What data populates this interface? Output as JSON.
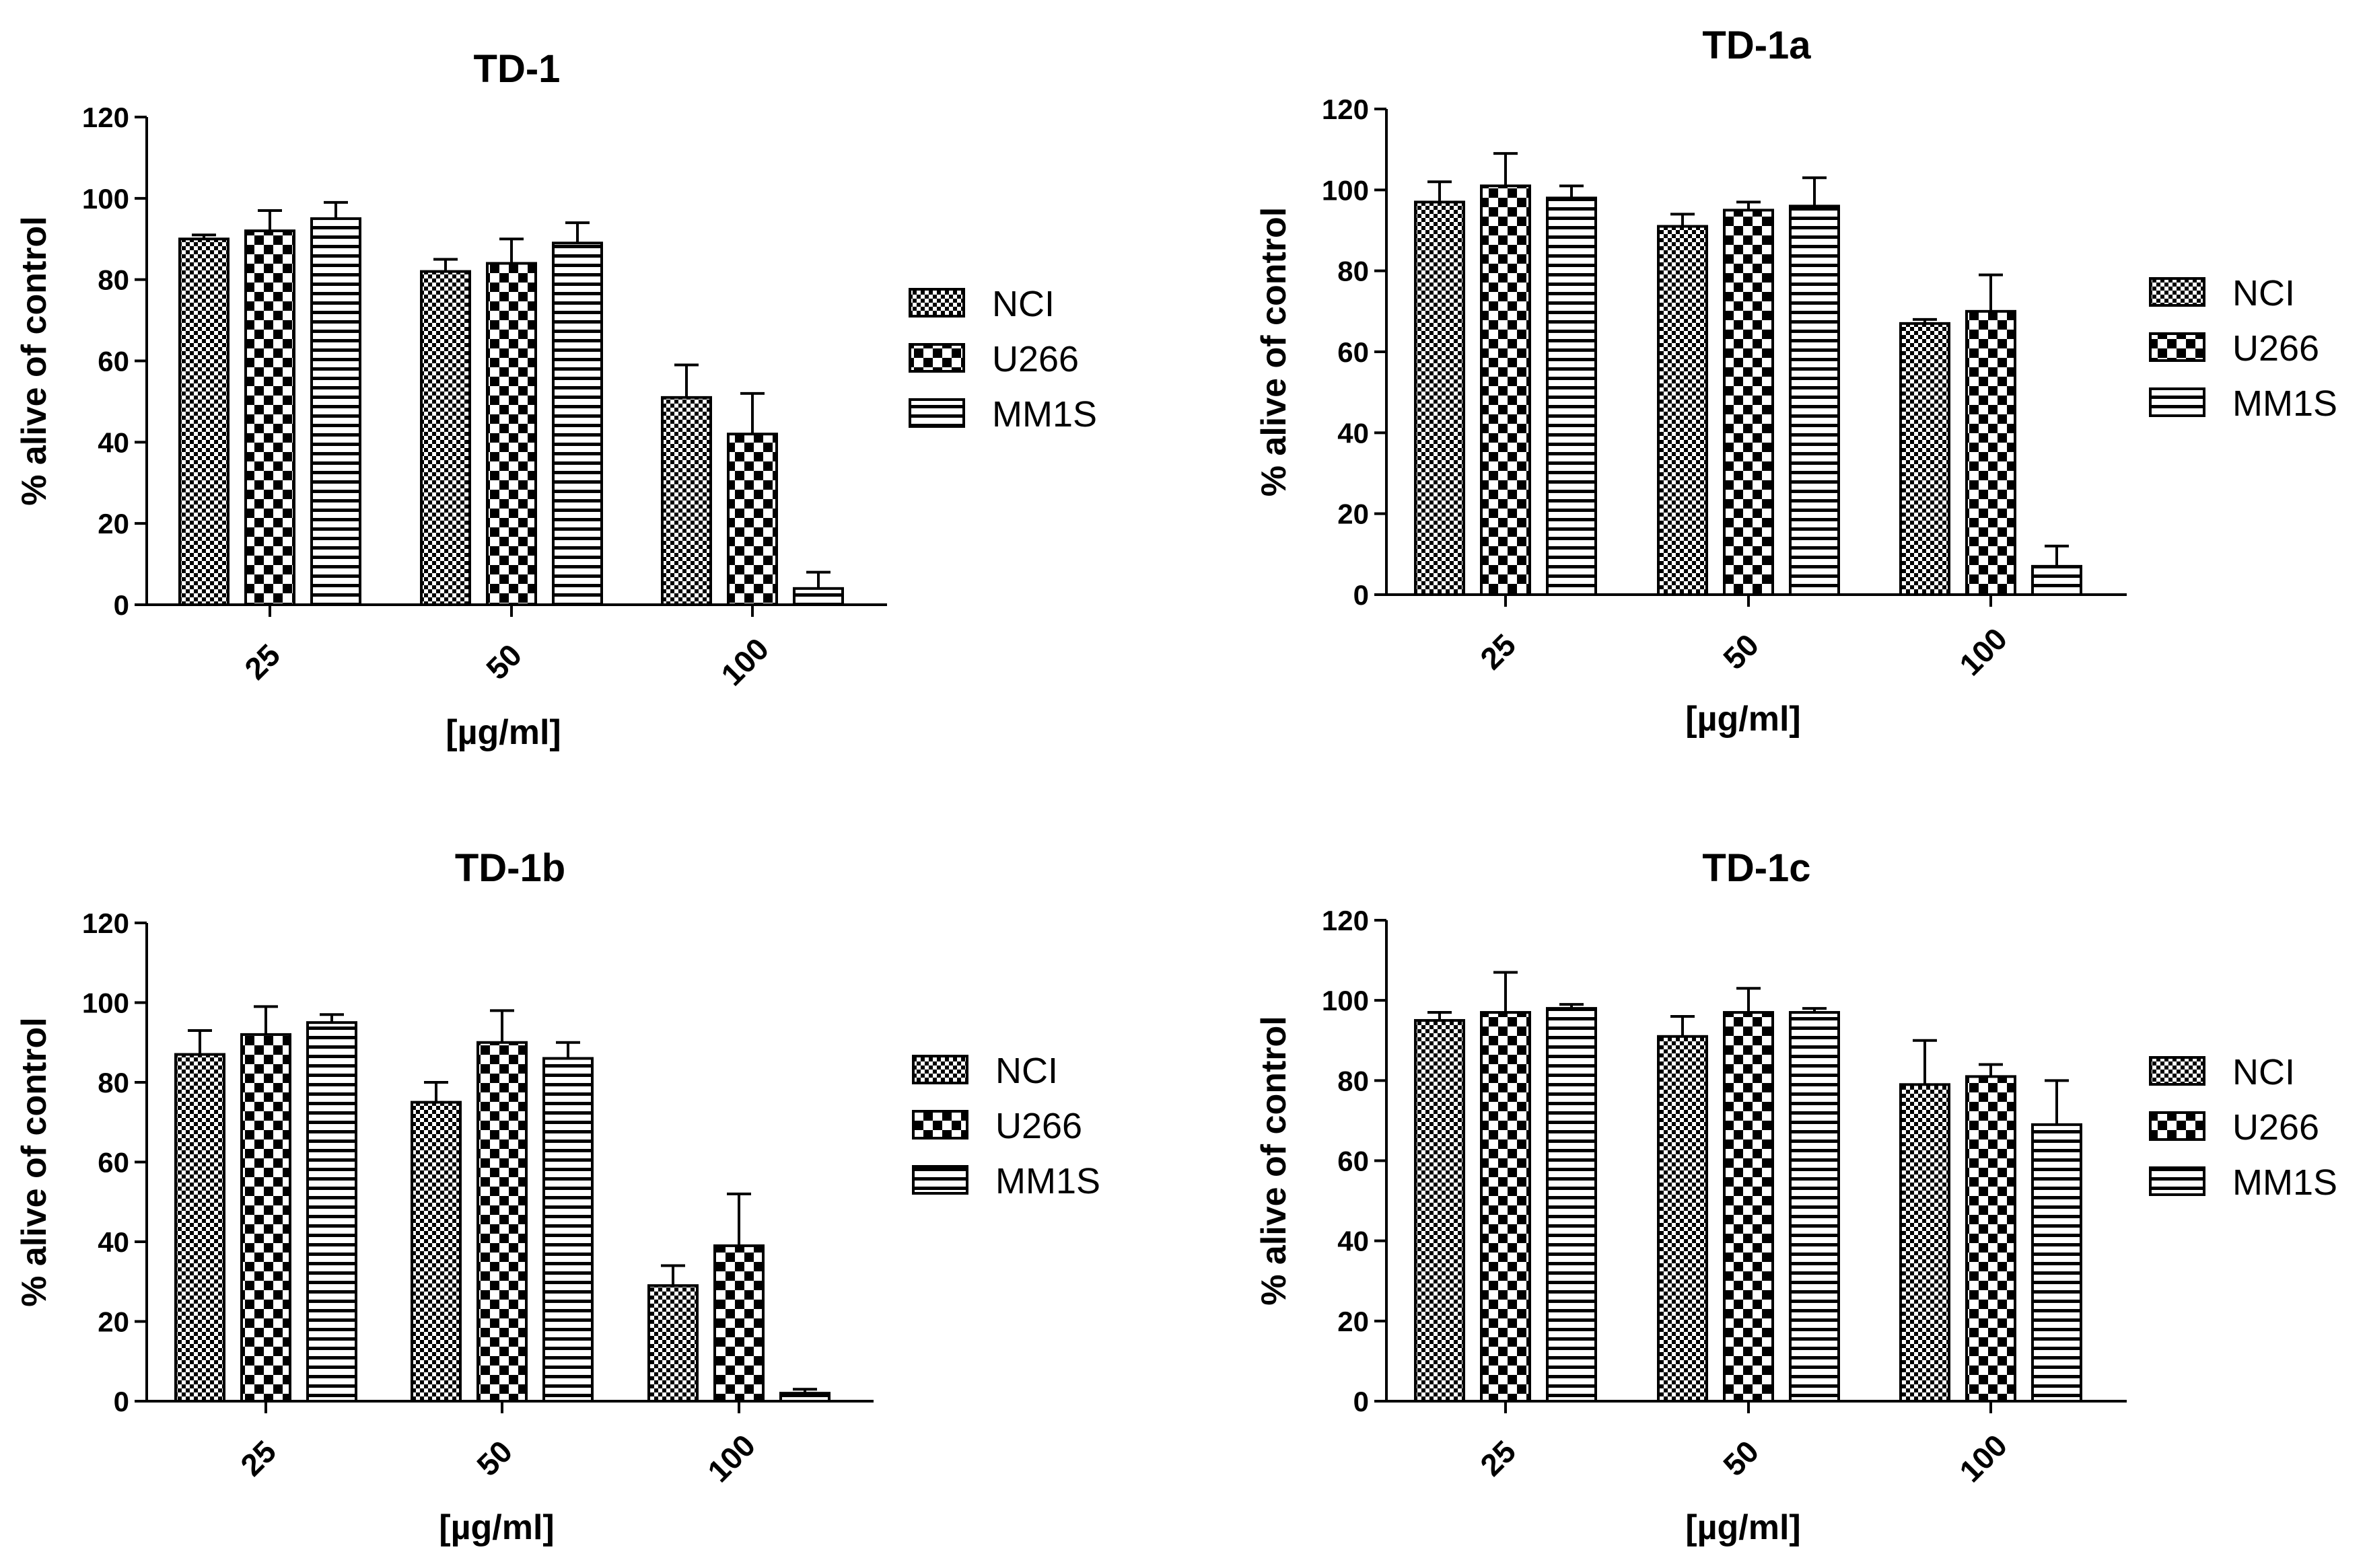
{
  "figure": {
    "colors": {
      "axis": "#000000",
      "bar_fill": "#ffffff"
    }
  },
  "chart_data": [
    {
      "type": "bar",
      "title": "TD-1",
      "xlabel": "[µg/ml]",
      "ylabel": "% alive of control",
      "categories": [
        "25",
        "50",
        "100"
      ],
      "ylim": [
        0,
        120
      ],
      "yticks": [
        "0",
        "20",
        "40",
        "60",
        "80",
        "100",
        "120"
      ],
      "legend": "right",
      "series": [
        {
          "name": "NCI",
          "pattern": "fine-check",
          "values": [
            90,
            82,
            51
          ],
          "errors": [
            1,
            3,
            8
          ]
        },
        {
          "name": "U266",
          "pattern": "coarse-check",
          "values": [
            92,
            84,
            42
          ],
          "errors": [
            5,
            6,
            10
          ]
        },
        {
          "name": "MM1S",
          "pattern": "horizontal-lines",
          "values": [
            95,
            89,
            4
          ],
          "errors": [
            4,
            5,
            4
          ]
        }
      ]
    },
    {
      "type": "bar",
      "title": "TD-1a",
      "xlabel": "[µg/ml]",
      "ylabel": "% alive of control",
      "categories": [
        "25",
        "50",
        "100"
      ],
      "ylim": [
        0,
        120
      ],
      "yticks": [
        "0",
        "20",
        "40",
        "60",
        "80",
        "100",
        "120"
      ],
      "legend": "right",
      "series": [
        {
          "name": "NCI",
          "pattern": "fine-check",
          "values": [
            97,
            91,
            67
          ],
          "errors": [
            5,
            3,
            1
          ]
        },
        {
          "name": "U266",
          "pattern": "coarse-check",
          "values": [
            101,
            95,
            70
          ],
          "errors": [
            8,
            2,
            9
          ]
        },
        {
          "name": "MM1S",
          "pattern": "horizontal-lines",
          "values": [
            98,
            96,
            7
          ],
          "errors": [
            3,
            7,
            5
          ]
        }
      ]
    },
    {
      "type": "bar",
      "title": "TD-1b",
      "xlabel": "[µg/ml]",
      "ylabel": "% alive of control",
      "categories": [
        "25",
        "50",
        "100"
      ],
      "ylim": [
        0,
        120
      ],
      "yticks": [
        "0",
        "20",
        "40",
        "60",
        "80",
        "100",
        "120"
      ],
      "legend": "right",
      "series": [
        {
          "name": "NCI",
          "pattern": "fine-check",
          "values": [
            87,
            75,
            29
          ],
          "errors": [
            6,
            5,
            5
          ]
        },
        {
          "name": "U266",
          "pattern": "coarse-check",
          "values": [
            92,
            90,
            39
          ],
          "errors": [
            7,
            8,
            13
          ]
        },
        {
          "name": "MM1S",
          "pattern": "horizontal-lines",
          "values": [
            95,
            86,
            2
          ],
          "errors": [
            2,
            4,
            1
          ]
        }
      ]
    },
    {
      "type": "bar",
      "title": "TD-1c",
      "xlabel": "[µg/ml]",
      "ylabel": "% alive of control",
      "categories": [
        "25",
        "50",
        "100"
      ],
      "ylim": [
        0,
        120
      ],
      "yticks": [
        "0",
        "20",
        "40",
        "60",
        "80",
        "100",
        "120"
      ],
      "legend": "right",
      "series": [
        {
          "name": "NCI",
          "pattern": "fine-check",
          "values": [
            95,
            91,
            79
          ],
          "errors": [
            2,
            5,
            11
          ]
        },
        {
          "name": "U266",
          "pattern": "coarse-check",
          "values": [
            97,
            97,
            81
          ],
          "errors": [
            10,
            6,
            3
          ]
        },
        {
          "name": "MM1S",
          "pattern": "horizontal-lines",
          "values": [
            98,
            97,
            69
          ],
          "errors": [
            1,
            1,
            11
          ]
        }
      ]
    }
  ]
}
